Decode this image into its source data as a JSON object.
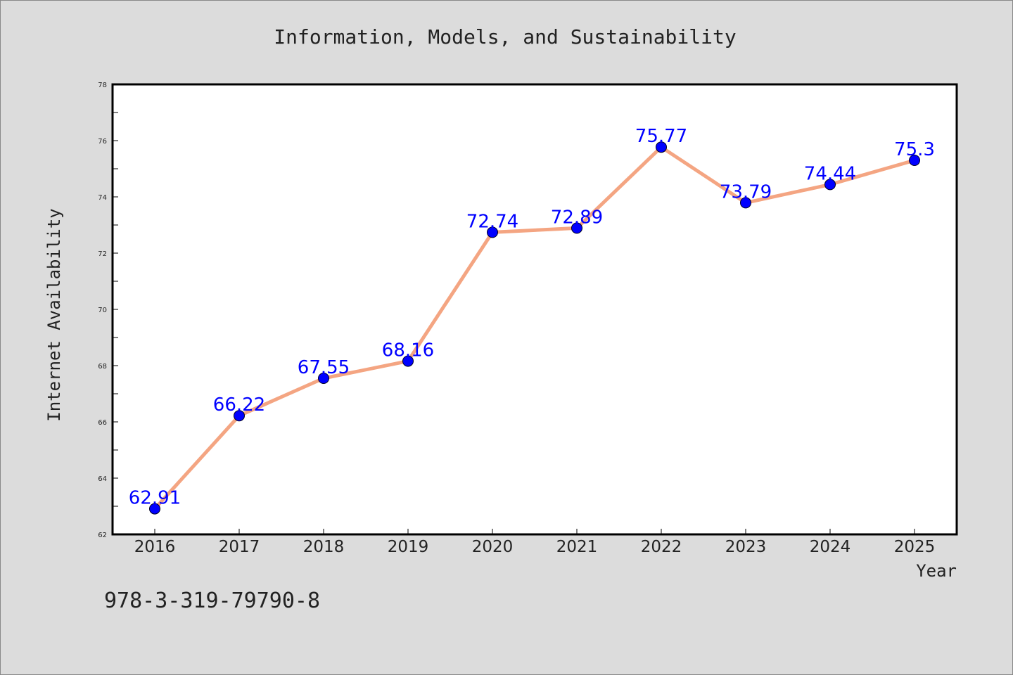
{
  "chart_data": {
    "type": "line",
    "title": "Information, Models, and Sustainability",
    "xlabel": "Year",
    "ylabel": "Internet Availability",
    "categories": [
      "2016",
      "2017",
      "2018",
      "2019",
      "2020",
      "2021",
      "2022",
      "2023",
      "2024",
      "2025"
    ],
    "values": [
      62.91,
      66.22,
      67.55,
      68.16,
      72.74,
      72.89,
      75.77,
      73.79,
      74.44,
      75.3
    ],
    "data_labels": [
      "62.91",
      "66.22",
      "67.55",
      "68.16",
      "72.74",
      "72.89",
      "75.77",
      "73.79",
      "74.44",
      "75.3"
    ],
    "ylim": [
      62,
      78
    ],
    "yticks": [
      62,
      64,
      66,
      68,
      70,
      72,
      74,
      76,
      78
    ],
    "grid": false,
    "legend": "none",
    "line_color": "#f4a582",
    "marker_color": "#0000ff",
    "label_color": "#0000ff"
  },
  "footer": {
    "isbn": "978-3-319-79790-8"
  }
}
